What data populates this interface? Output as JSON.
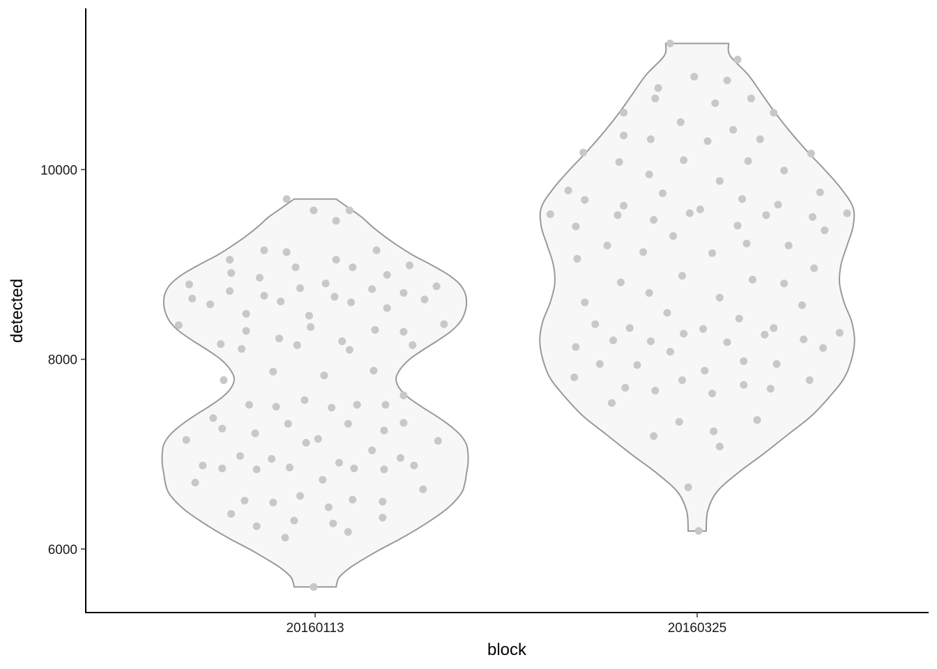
{
  "chart_data": {
    "type": "violin",
    "title": "",
    "xlabel": "block",
    "ylabel": "detected",
    "categories": [
      "20160113",
      "20160325"
    ],
    "ylim": [
      5330,
      11700
    ],
    "yticks": [
      6000,
      8000,
      10000
    ],
    "grid": false,
    "legend": "none",
    "colors": {
      "violin_fill": "#f7f7f7",
      "violin_stroke": "#999999",
      "point": "#c8c8c8",
      "axis": "#000000"
    },
    "violins": [
      {
        "category": "20160113",
        "min": 5600,
        "max": 9690,
        "profile": [
          [
            5600,
            0.14
          ],
          [
            5700,
            0.16
          ],
          [
            5800,
            0.23
          ],
          [
            5900,
            0.33
          ],
          [
            6000,
            0.44
          ],
          [
            6100,
            0.56
          ],
          [
            6200,
            0.67
          ],
          [
            6300,
            0.77
          ],
          [
            6400,
            0.86
          ],
          [
            6500,
            0.93
          ],
          [
            6600,
            0.98
          ],
          [
            6700,
            1.0
          ],
          [
            6800,
            1.01
          ],
          [
            6900,
            1.02
          ],
          [
            7000,
            1.02
          ],
          [
            7100,
            1.01
          ],
          [
            7200,
            0.97
          ],
          [
            7300,
            0.9
          ],
          [
            7400,
            0.81
          ],
          [
            7500,
            0.71
          ],
          [
            7600,
            0.62
          ],
          [
            7700,
            0.56
          ],
          [
            7800,
            0.54
          ],
          [
            7900,
            0.57
          ],
          [
            8000,
            0.63
          ],
          [
            8100,
            0.72
          ],
          [
            8200,
            0.82
          ],
          [
            8300,
            0.91
          ],
          [
            8400,
            0.97
          ],
          [
            8500,
            1.0
          ],
          [
            8600,
            1.01
          ],
          [
            8700,
            1.0
          ],
          [
            8800,
            0.96
          ],
          [
            8900,
            0.88
          ],
          [
            9000,
            0.77
          ],
          [
            9100,
            0.65
          ],
          [
            9200,
            0.55
          ],
          [
            9300,
            0.46
          ],
          [
            9400,
            0.38
          ],
          [
            9500,
            0.31
          ],
          [
            9600,
            0.22
          ],
          [
            9690,
            0.14
          ]
        ],
        "points": [
          [
            9690,
            -0.19
          ],
          [
            9570,
            -0.01
          ],
          [
            9570,
            0.23
          ],
          [
            9460,
            0.14
          ],
          [
            9150,
            -0.34
          ],
          [
            9150,
            0.41
          ],
          [
            9130,
            -0.19
          ],
          [
            9050,
            0.14
          ],
          [
            9050,
            -0.57
          ],
          [
            8990,
            0.63
          ],
          [
            8970,
            -0.13
          ],
          [
            8970,
            0.25
          ],
          [
            8910,
            -0.56
          ],
          [
            8890,
            0.48
          ],
          [
            8860,
            -0.37
          ],
          [
            8800,
            0.07
          ],
          [
            8790,
            -0.84
          ],
          [
            8770,
            0.81
          ],
          [
            8750,
            -0.1
          ],
          [
            8740,
            0.38
          ],
          [
            8720,
            -0.57
          ],
          [
            8700,
            0.59
          ],
          [
            8670,
            -0.34
          ],
          [
            8660,
            0.13
          ],
          [
            8640,
            -0.82
          ],
          [
            8630,
            0.73
          ],
          [
            8610,
            -0.23
          ],
          [
            8600,
            0.24
          ],
          [
            8580,
            -0.7
          ],
          [
            8540,
            0.48
          ],
          [
            8480,
            -0.46
          ],
          [
            8460,
            -0.04
          ],
          [
            8370,
            0.86
          ],
          [
            8360,
            -0.91
          ],
          [
            8340,
            -0.03
          ],
          [
            8310,
            0.4
          ],
          [
            8300,
            -0.46
          ],
          [
            8290,
            0.59
          ],
          [
            8220,
            -0.24
          ],
          [
            8190,
            0.18
          ],
          [
            8160,
            -0.63
          ],
          [
            8150,
            -0.12
          ],
          [
            8150,
            0.65
          ],
          [
            8110,
            -0.49
          ],
          [
            8100,
            0.23
          ],
          [
            7880,
            0.39
          ],
          [
            7870,
            -0.28
          ],
          [
            7830,
            0.06
          ],
          [
            7780,
            -0.61
          ],
          [
            7620,
            0.59
          ],
          [
            7570,
            -0.07
          ],
          [
            7520,
            -0.44
          ],
          [
            7520,
            0.28
          ],
          [
            7520,
            0.47
          ],
          [
            7500,
            -0.26
          ],
          [
            7490,
            0.11
          ],
          [
            7380,
            -0.68
          ],
          [
            7330,
            0.59
          ],
          [
            7320,
            -0.18
          ],
          [
            7320,
            0.22
          ],
          [
            7270,
            -0.62
          ],
          [
            7250,
            0.46
          ],
          [
            7220,
            -0.4
          ],
          [
            7160,
            0.02
          ],
          [
            7150,
            -0.86
          ],
          [
            7140,
            0.82
          ],
          [
            7120,
            -0.06
          ],
          [
            7040,
            0.38
          ],
          [
            6980,
            -0.5
          ],
          [
            6960,
            0.57
          ],
          [
            6950,
            -0.29
          ],
          [
            6910,
            0.16
          ],
          [
            6880,
            0.66
          ],
          [
            6880,
            -0.75
          ],
          [
            6860,
            -0.17
          ],
          [
            6850,
            0.26
          ],
          [
            6850,
            -0.62
          ],
          [
            6840,
            0.46
          ],
          [
            6840,
            -0.39
          ],
          [
            6730,
            0.05
          ],
          [
            6700,
            -0.8
          ],
          [
            6630,
            0.72
          ],
          [
            6560,
            -0.1
          ],
          [
            6520,
            0.25
          ],
          [
            6510,
            -0.47
          ],
          [
            6500,
            0.45
          ],
          [
            6490,
            -0.28
          ],
          [
            6440,
            0.09
          ],
          [
            6370,
            -0.56
          ],
          [
            6330,
            0.45
          ],
          [
            6300,
            -0.14
          ],
          [
            6270,
            0.12
          ],
          [
            6240,
            -0.39
          ],
          [
            6180,
            0.22
          ],
          [
            6120,
            -0.2
          ],
          [
            5600,
            -0.01
          ]
        ]
      },
      {
        "category": "20160325",
        "min": 6190,
        "max": 11330,
        "profile": [
          [
            6190,
            0.06
          ],
          [
            6400,
            0.07
          ],
          [
            6600,
            0.13
          ],
          [
            6800,
            0.27
          ],
          [
            7000,
            0.44
          ],
          [
            7200,
            0.6
          ],
          [
            7400,
            0.76
          ],
          [
            7600,
            0.88
          ],
          [
            7800,
            0.98
          ],
          [
            8000,
            1.03
          ],
          [
            8200,
            1.05
          ],
          [
            8400,
            1.03
          ],
          [
            8600,
            0.98
          ],
          [
            8800,
            0.95
          ],
          [
            9000,
            0.96
          ],
          [
            9200,
            1.0
          ],
          [
            9400,
            1.04
          ],
          [
            9600,
            1.04
          ],
          [
            9800,
            0.96
          ],
          [
            10000,
            0.85
          ],
          [
            10200,
            0.73
          ],
          [
            10400,
            0.62
          ],
          [
            10600,
            0.52
          ],
          [
            10800,
            0.43
          ],
          [
            11000,
            0.34
          ],
          [
            11200,
            0.22
          ],
          [
            11330,
            0.21
          ]
        ],
        "points": [
          [
            11330,
            -0.18
          ],
          [
            11160,
            0.27
          ],
          [
            10980,
            -0.02
          ],
          [
            10940,
            0.2
          ],
          [
            10860,
            -0.26
          ],
          [
            10750,
            0.36
          ],
          [
            10750,
            -0.28
          ],
          [
            10700,
            0.12
          ],
          [
            10600,
            -0.49
          ],
          [
            10600,
            0.51
          ],
          [
            10500,
            -0.11
          ],
          [
            10420,
            0.24
          ],
          [
            10360,
            -0.49
          ],
          [
            10320,
            -0.31
          ],
          [
            10320,
            0.42
          ],
          [
            10300,
            0.07
          ],
          [
            10180,
            -0.76
          ],
          [
            10170,
            0.76
          ],
          [
            10100,
            -0.09
          ],
          [
            10090,
            0.34
          ],
          [
            10080,
            -0.52
          ],
          [
            9990,
            0.58
          ],
          [
            9950,
            -0.32
          ],
          [
            9880,
            0.15
          ],
          [
            9780,
            -0.86
          ],
          [
            9760,
            0.82
          ],
          [
            9750,
            -0.23
          ],
          [
            9690,
            0.3
          ],
          [
            9680,
            -0.75
          ],
          [
            9620,
            -0.49
          ],
          [
            9630,
            0.54
          ],
          [
            9580,
            0.02
          ],
          [
            9540,
            -0.05
          ],
          [
            9540,
            1.0
          ],
          [
            9530,
            -0.98
          ],
          [
            9520,
            -0.53
          ],
          [
            9520,
            0.46
          ],
          [
            9500,
            0.77
          ],
          [
            9470,
            -0.29
          ],
          [
            9410,
            0.27
          ],
          [
            9400,
            -0.81
          ],
          [
            9360,
            0.85
          ],
          [
            9300,
            -0.16
          ],
          [
            9220,
            0.33
          ],
          [
            9200,
            0.61
          ],
          [
            9200,
            -0.6
          ],
          [
            9120,
            0.1
          ],
          [
            9130,
            -0.36
          ],
          [
            9060,
            -0.8
          ],
          [
            8960,
            0.78
          ],
          [
            8880,
            -0.1
          ],
          [
            8840,
            0.37
          ],
          [
            8810,
            -0.51
          ],
          [
            8800,
            0.58
          ],
          [
            8700,
            -0.32
          ],
          [
            8650,
            0.15
          ],
          [
            8600,
            -0.75
          ],
          [
            8570,
            0.7
          ],
          [
            8490,
            -0.2
          ],
          [
            8430,
            0.28
          ],
          [
            8370,
            -0.68
          ],
          [
            8330,
            -0.45
          ],
          [
            8330,
            0.51
          ],
          [
            8320,
            0.04
          ],
          [
            8280,
            0.95
          ],
          [
            8270,
            -0.09
          ],
          [
            8260,
            0.45
          ],
          [
            8210,
            0.71
          ],
          [
            8200,
            -0.56
          ],
          [
            8190,
            -0.31
          ],
          [
            8180,
            0.2
          ],
          [
            8130,
            -0.81
          ],
          [
            8120,
            0.84
          ],
          [
            8080,
            -0.18
          ],
          [
            7980,
            0.31
          ],
          [
            7950,
            -0.65
          ],
          [
            7950,
            0.53
          ],
          [
            7940,
            -0.4
          ],
          [
            7880,
            0.05
          ],
          [
            7810,
            -0.82
          ],
          [
            7780,
            0.75
          ],
          [
            7780,
            -0.1
          ],
          [
            7730,
            0.31
          ],
          [
            7700,
            -0.48
          ],
          [
            7690,
            0.49
          ],
          [
            7670,
            -0.28
          ],
          [
            7640,
            0.1
          ],
          [
            7540,
            -0.57
          ],
          [
            7360,
            0.4
          ],
          [
            7340,
            -0.12
          ],
          [
            7240,
            0.11
          ],
          [
            7190,
            -0.29
          ],
          [
            7080,
            0.15
          ],
          [
            6650,
            -0.06
          ],
          [
            6190,
            0.01
          ]
        ]
      }
    ]
  }
}
